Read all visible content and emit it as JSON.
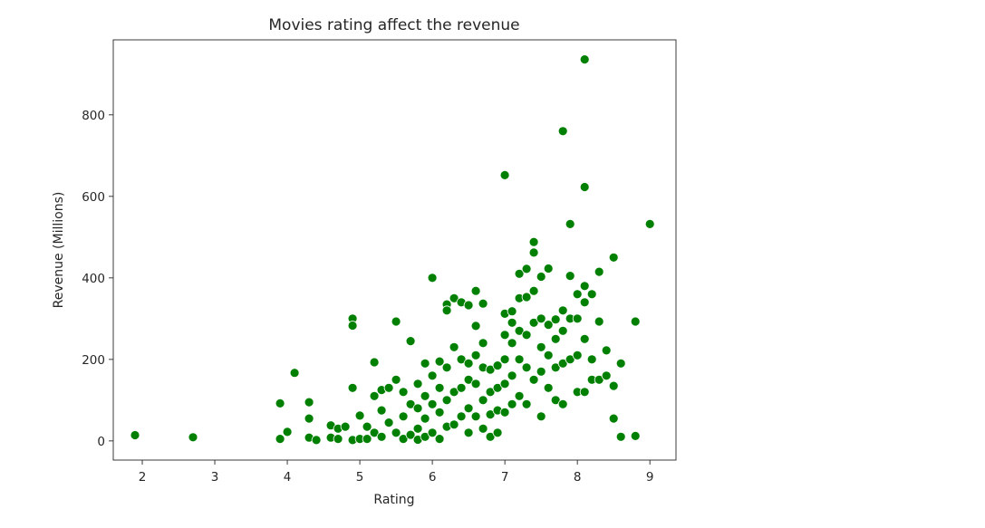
{
  "chart_data": {
    "type": "scatter",
    "title": "Movies rating affect the revenue",
    "xlabel": "Rating",
    "ylabel": "Revenue (Millions)",
    "xlim": [
      1.6,
      9.36
    ],
    "ylim": [
      -47,
      984
    ],
    "xticks": [
      2,
      3,
      4,
      5,
      6,
      7,
      8,
      9
    ],
    "yticks": [
      0,
      200,
      400,
      600,
      800
    ],
    "grid": false,
    "legend": "none",
    "marker_color": "#008000",
    "series": [
      {
        "x": [
          1.9,
          2.7,
          3.9,
          3.9,
          4.0,
          4.1,
          4.3,
          4.3,
          4.3,
          4.4,
          4.6,
          4.6,
          4.7,
          4.7,
          4.8,
          4.9,
          4.9,
          4.9,
          4.9,
          5.0,
          5.0,
          5.1,
          5.1,
          5.2,
          5.2,
          5.2,
          5.3,
          5.3,
          5.3,
          5.4,
          5.4,
          5.5,
          5.5,
          5.5,
          5.6,
          5.6,
          5.6,
          5.7,
          5.7,
          5.7,
          5.8,
          5.8,
          5.8,
          5.8,
          5.9,
          5.9,
          5.9,
          5.9,
          6.0,
          6.0,
          6.0,
          6.0,
          6.1,
          6.1,
          6.1,
          6.1,
          6.2,
          6.2,
          6.2,
          6.2,
          6.2,
          6.3,
          6.3,
          6.3,
          6.3,
          6.4,
          6.4,
          6.4,
          6.4,
          6.5,
          6.5,
          6.5,
          6.5,
          6.5,
          6.6,
          6.6,
          6.6,
          6.6,
          6.6,
          6.7,
          6.7,
          6.7,
          6.7,
          6.7,
          6.8,
          6.8,
          6.8,
          6.8,
          6.9,
          6.9,
          6.9,
          6.9,
          7.0,
          7.0,
          7.0,
          7.0,
          7.0,
          7.0,
          7.1,
          7.1,
          7.1,
          7.1,
          7.1,
          7.2,
          7.2,
          7.2,
          7.2,
          7.2,
          7.3,
          7.3,
          7.3,
          7.3,
          7.3,
          7.4,
          7.4,
          7.4,
          7.4,
          7.4,
          7.5,
          7.5,
          7.5,
          7.5,
          7.5,
          7.6,
          7.6,
          7.6,
          7.6,
          7.7,
          7.7,
          7.7,
          7.7,
          7.8,
          7.8,
          7.8,
          7.8,
          7.8,
          7.9,
          7.9,
          7.9,
          7.9,
          8.0,
          8.0,
          8.0,
          8.0,
          8.1,
          8.1,
          8.1,
          8.1,
          8.1,
          8.1,
          8.2,
          8.2,
          8.2,
          8.3,
          8.3,
          8.3,
          8.4,
          8.4,
          8.5,
          8.5,
          8.5,
          8.6,
          8.6,
          8.8,
          8.8,
          9.0
        ],
        "y": [
          14,
          9,
          92,
          5,
          22,
          167,
          95,
          55,
          8,
          2,
          38,
          8,
          30,
          5,
          35,
          300,
          283,
          130,
          2,
          62,
          5,
          35,
          5,
          193,
          110,
          20,
          125,
          75,
          10,
          130,
          45,
          293,
          150,
          20,
          120,
          60,
          5,
          245,
          90,
          15,
          140,
          80,
          30,
          3,
          190,
          110,
          55,
          10,
          400,
          160,
          90,
          20,
          195,
          130,
          70,
          5,
          335,
          320,
          180,
          100,
          35,
          350,
          230,
          120,
          40,
          340,
          200,
          130,
          60,
          333,
          190,
          150,
          80,
          20,
          368,
          282,
          210,
          140,
          60,
          337,
          240,
          180,
          100,
          30,
          175,
          120,
          65,
          10,
          185,
          130,
          75,
          20,
          652,
          312,
          260,
          200,
          140,
          70,
          318,
          290,
          240,
          160,
          90,
          410,
          350,
          270,
          200,
          110,
          422,
          353,
          260,
          180,
          90,
          488,
          462,
          368,
          290,
          150,
          403,
          300,
          230,
          170,
          60,
          423,
          285,
          210,
          130,
          298,
          250,
          180,
          100,
          760,
          320,
          270,
          190,
          90,
          532,
          405,
          300,
          200,
          360,
          300,
          210,
          120,
          936,
          623,
          380,
          340,
          250,
          120,
          360,
          200,
          150,
          415,
          293,
          150,
          222,
          160,
          450,
          135,
          55,
          190,
          10,
          293,
          12,
          532
        ]
      }
    ]
  }
}
